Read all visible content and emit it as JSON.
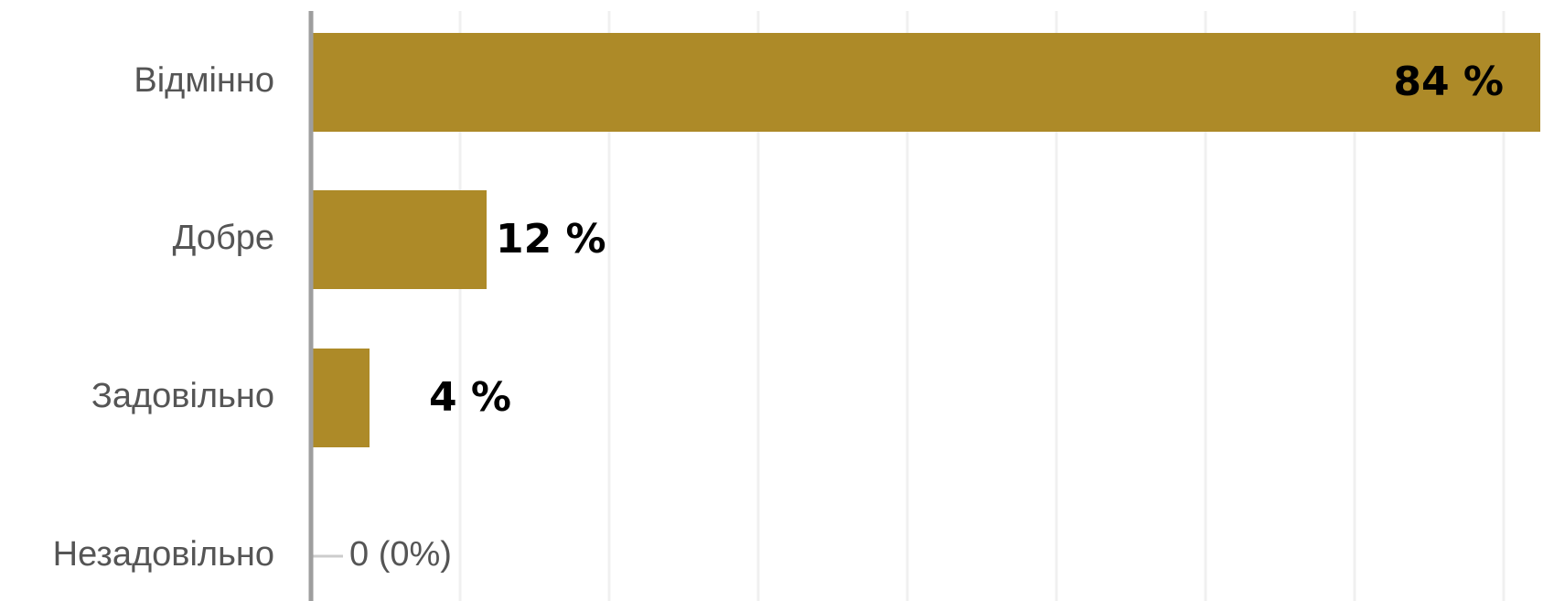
{
  "chart_data": {
    "type": "bar",
    "orientation": "horizontal",
    "categories": [
      "Відмінно",
      "Добре",
      "Задовільно",
      "Незадовільно"
    ],
    "values": [
      84,
      12,
      4,
      0
    ],
    "value_labels": [
      "84 %",
      "12 %",
      "4 %",
      "0 (0%)"
    ],
    "xlim": [
      0,
      84
    ],
    "grid": true,
    "legend": "none",
    "colors": {
      "bar": "#AD8A28",
      "grid": "#f0f0f0",
      "axis": "#9e9e9e",
      "category_text": "#555555",
      "value_text": "#000000"
    }
  }
}
